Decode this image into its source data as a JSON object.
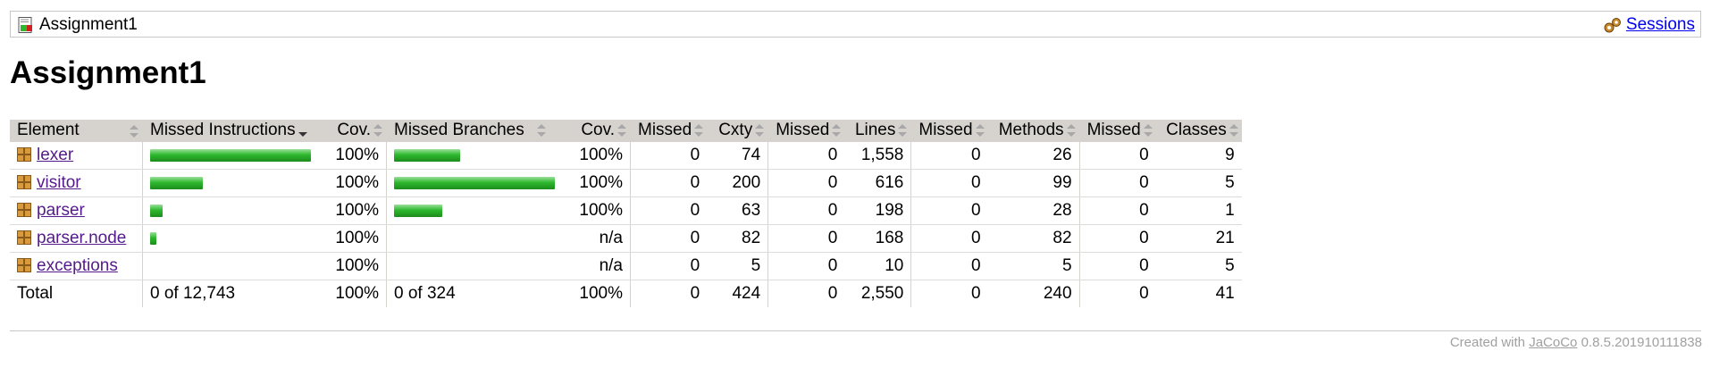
{
  "breadcrumb": {
    "report_name": "Assignment1",
    "sessions_label": "Sessions"
  },
  "page_title": "Assignment1",
  "table": {
    "headers": {
      "element": "Element",
      "missed_instructions": "Missed Instructions",
      "cov_instructions": "Cov.",
      "missed_branches": "Missed Branches",
      "cov_branches": "Cov.",
      "missed_cxty": "Missed",
      "cxty": "Cxty",
      "missed_lines": "Missed",
      "lines": "Lines",
      "missed_methods": "Missed",
      "methods": "Methods",
      "missed_classes": "Missed",
      "classes": "Classes"
    },
    "rows": [
      {
        "name": "lexer",
        "instr_bar": 1.0,
        "instr_cov": "100%",
        "branch_bar": 0.41,
        "branch_cov": "100%",
        "missed_cxty": "0",
        "cxty": "74",
        "missed_lines": "0",
        "lines": "1,558",
        "missed_methods": "0",
        "methods": "26",
        "missed_classes": "0",
        "classes": "9"
      },
      {
        "name": "visitor",
        "instr_bar": 0.33,
        "instr_cov": "100%",
        "branch_bar": 1.0,
        "branch_cov": "100%",
        "missed_cxty": "0",
        "cxty": "200",
        "missed_lines": "0",
        "lines": "616",
        "missed_methods": "0",
        "methods": "99",
        "missed_classes": "0",
        "classes": "5"
      },
      {
        "name": "parser",
        "instr_bar": 0.08,
        "instr_cov": "100%",
        "branch_bar": 0.3,
        "branch_cov": "100%",
        "missed_cxty": "0",
        "cxty": "63",
        "missed_lines": "0",
        "lines": "198",
        "missed_methods": "0",
        "methods": "28",
        "missed_classes": "0",
        "classes": "1"
      },
      {
        "name": "parser.node",
        "instr_bar": 0.04,
        "instr_cov": "100%",
        "branch_bar": 0,
        "branch_cov": "n/a",
        "missed_cxty": "0",
        "cxty": "82",
        "missed_lines": "0",
        "lines": "168",
        "missed_methods": "0",
        "methods": "82",
        "missed_classes": "0",
        "classes": "21"
      },
      {
        "name": "exceptions",
        "instr_bar": 0,
        "instr_cov": "100%",
        "branch_bar": 0,
        "branch_cov": "n/a",
        "missed_cxty": "0",
        "cxty": "5",
        "missed_lines": "0",
        "lines": "10",
        "missed_methods": "0",
        "methods": "5",
        "missed_classes": "0",
        "classes": "5"
      }
    ],
    "total": {
      "label": "Total",
      "missed_instructions": "0 of 12,743",
      "instr_cov": "100%",
      "missed_branches": "0 of 324",
      "branch_cov": "100%",
      "missed_cxty": "0",
      "cxty": "424",
      "missed_lines": "0",
      "lines": "2,550",
      "missed_methods": "0",
      "methods": "240",
      "missed_classes": "0",
      "classes": "41"
    }
  },
  "footer": {
    "prefix": "Created with",
    "link": "JaCoCo",
    "version": "0.8.5.201910111838"
  },
  "colors": {
    "header_bg": "#d6d3ce",
    "bar_green": "#2eb82e",
    "link": "#0000ee",
    "visited_link": "#551a8b"
  },
  "icons": {
    "report": "report-icon",
    "sessions": "sessions-icon",
    "package": "package-icon",
    "sort": "sort-icon"
  }
}
